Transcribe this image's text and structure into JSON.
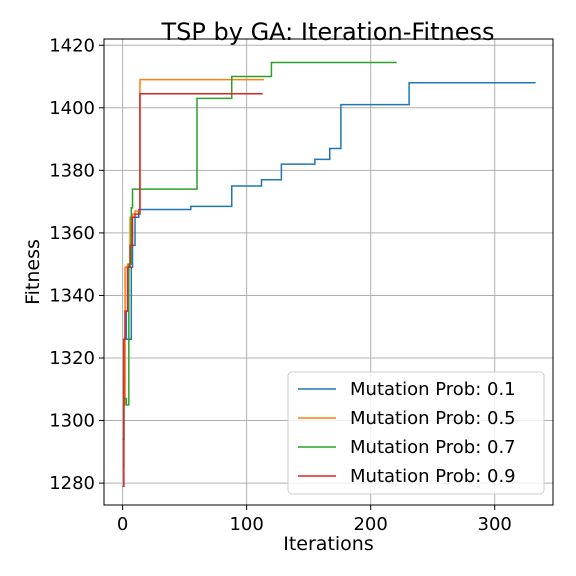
{
  "chart_data": {
    "type": "line",
    "title": "TSP by GA: Iteration-Fitness",
    "xlabel": "Iterations",
    "ylabel": "Fitness",
    "xlim": [
      -15,
      347
    ],
    "ylim": [
      1273,
      1422
    ],
    "xticks": [
      0,
      100,
      200,
      300
    ],
    "yticks": [
      1280,
      1300,
      1320,
      1340,
      1360,
      1380,
      1400,
      1420
    ],
    "grid": true,
    "legend_position": "lower-right",
    "series": [
      {
        "name": "Mutation Prob: 0.1",
        "color": "#1f77b4",
        "x": [
          0,
          1,
          1,
          2,
          2,
          3,
          3,
          7,
          7,
          8,
          8,
          10,
          10,
          13,
          13,
          55,
          55,
          88,
          88,
          112,
          112,
          128,
          128,
          155,
          155,
          167,
          167,
          176,
          176,
          231,
          231,
          333
        ],
        "y": [
          1294,
          1294,
          1326,
          1326,
          1335,
          1335,
          1326,
          1326,
          1349,
          1349,
          1356,
          1356,
          1365,
          1365,
          1367.5,
          1367.5,
          1368.5,
          1368.5,
          1375,
          1375,
          1377,
          1377,
          1382,
          1382,
          1383.5,
          1383.5,
          1387,
          1387,
          1401,
          1401,
          1408,
          1408
        ]
      },
      {
        "name": "Mutation Prob: 0.5",
        "color": "#ff7f0e",
        "x": [
          0,
          1,
          1,
          2,
          2,
          4,
          4,
          6,
          6,
          8,
          8,
          10,
          10,
          14,
          14,
          114
        ],
        "y": [
          1285,
          1285,
          1305,
          1305,
          1349,
          1349,
          1350,
          1350,
          1365,
          1365,
          1366,
          1366,
          1367,
          1367,
          1409,
          1409
        ]
      },
      {
        "name": "Mutation Prob: 0.7",
        "color": "#2ca02c",
        "x": [
          0,
          1,
          1,
          3,
          3,
          5,
          5,
          7,
          7,
          8,
          8,
          60,
          60,
          88,
          88,
          120,
          120,
          221
        ],
        "y": [
          1294,
          1294,
          1307,
          1307,
          1305,
          1305,
          1350,
          1350,
          1368,
          1368,
          1374,
          1374,
          1403,
          1403,
          1410,
          1410,
          1414.5,
          1414.5
        ]
      },
      {
        "name": "Mutation Prob: 0.9",
        "color": "#d62728",
        "x": [
          0,
          1,
          1,
          2,
          2,
          4,
          4,
          6,
          6,
          8,
          8,
          10,
          10,
          14,
          14,
          113
        ],
        "y": [
          1279,
          1279,
          1326,
          1326,
          1335,
          1335,
          1349,
          1349,
          1356,
          1356,
          1365,
          1365,
          1366,
          1366,
          1404.5,
          1404.5
        ]
      }
    ]
  }
}
